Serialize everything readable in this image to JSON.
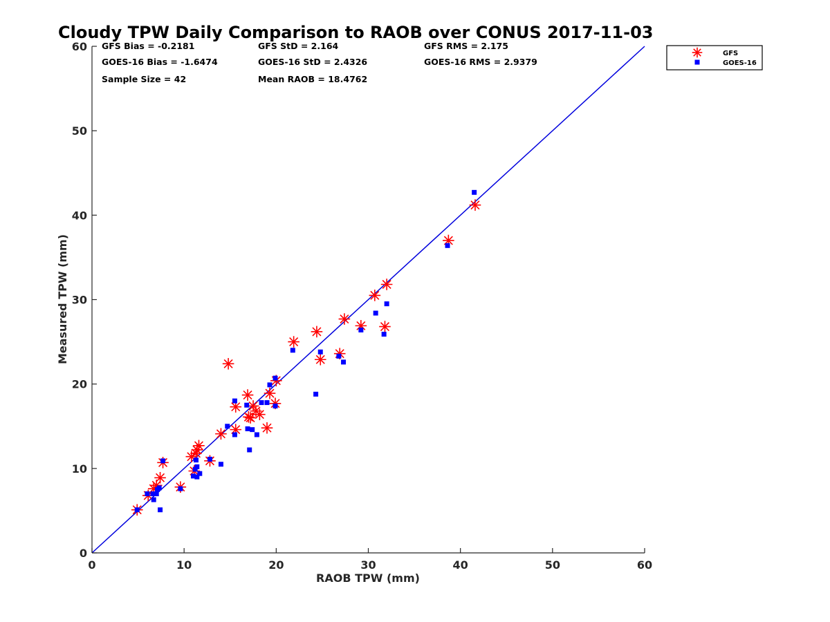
{
  "chart_data": {
    "type": "scatter",
    "title": "Cloudy TPW Daily Comparison to RAOB over CONUS 2017-11-03",
    "xlabel": "RAOB TPW (mm)",
    "ylabel": "Measured TPW (mm)",
    "xlim": [
      0,
      60
    ],
    "ylim": [
      0,
      60
    ],
    "xticks": [
      "0",
      "10",
      "20",
      "30",
      "40",
      "50",
      "60"
    ],
    "yticks": [
      "0",
      "10",
      "20",
      "30",
      "40",
      "50",
      "60"
    ],
    "grid": false,
    "legend_position": "top-right, outside plot",
    "reference_line": {
      "from": [
        0,
        0
      ],
      "to": [
        60,
        60
      ],
      "color": "#0000dd"
    },
    "stats": [
      [
        "GFS Bias = -0.2181",
        "GFS StD = 2.164",
        "GFS RMS = 2.175"
      ],
      [
        "GOES-16 Bias = -1.6474",
        "GOES-16 StD = 2.4326",
        "GOES-16 RMS = 2.9379"
      ],
      [
        "Sample Size = 42",
        "Mean RAOB = 18.4762",
        ""
      ]
    ],
    "series": [
      {
        "name": "GFS",
        "marker": "asterisk",
        "color": "#ff0000",
        "points": [
          [
            4.9,
            5.1
          ],
          [
            6.1,
            6.8
          ],
          [
            6.7,
            7.6
          ],
          [
            7.0,
            8.0
          ],
          [
            7.4,
            8.9
          ],
          [
            7.7,
            10.7
          ],
          [
            9.6,
            7.8
          ],
          [
            10.8,
            11.4
          ],
          [
            11.1,
            9.7
          ],
          [
            11.3,
            11.8
          ],
          [
            11.4,
            12.2
          ],
          [
            11.6,
            12.7
          ],
          [
            12.8,
            10.9
          ],
          [
            14.0,
            14.1
          ],
          [
            14.8,
            22.4
          ],
          [
            15.6,
            17.3
          ],
          [
            15.6,
            14.6
          ],
          [
            16.9,
            18.7
          ],
          [
            17.0,
            16.1
          ],
          [
            17.2,
            16.0
          ],
          [
            17.5,
            17.4
          ],
          [
            17.8,
            16.8
          ],
          [
            18.2,
            16.4
          ],
          [
            19.0,
            14.8
          ],
          [
            19.3,
            18.9
          ],
          [
            19.9,
            17.7
          ],
          [
            20.0,
            20.4
          ],
          [
            21.9,
            25.0
          ],
          [
            24.4,
            26.2
          ],
          [
            24.8,
            22.9
          ],
          [
            26.9,
            23.6
          ],
          [
            27.4,
            27.7
          ],
          [
            29.2,
            26.9
          ],
          [
            30.7,
            30.5
          ],
          [
            31.8,
            26.8
          ],
          [
            32.0,
            31.8
          ],
          [
            38.7,
            37.0
          ],
          [
            41.6,
            41.2
          ]
        ]
      },
      {
        "name": "GOES-16",
        "marker": "square",
        "color": "#0000ff",
        "points": [
          [
            4.9,
            5.1
          ],
          [
            6.0,
            7.0
          ],
          [
            6.6,
            7.0
          ],
          [
            6.7,
            6.3
          ],
          [
            7.0,
            7.0
          ],
          [
            7.1,
            7.5
          ],
          [
            7.3,
            7.7
          ],
          [
            7.4,
            5.1
          ],
          [
            7.7,
            10.9
          ],
          [
            9.6,
            7.6
          ],
          [
            11.0,
            9.1
          ],
          [
            11.2,
            9.9
          ],
          [
            11.3,
            11.0
          ],
          [
            11.4,
            10.2
          ],
          [
            11.4,
            9.0
          ],
          [
            11.7,
            9.4
          ],
          [
            12.8,
            11.1
          ],
          [
            14.0,
            10.5
          ],
          [
            14.7,
            15.0
          ],
          [
            15.5,
            18.0
          ],
          [
            15.5,
            14.0
          ],
          [
            16.8,
            17.5
          ],
          [
            16.9,
            14.7
          ],
          [
            17.1,
            12.2
          ],
          [
            17.4,
            14.6
          ],
          [
            17.9,
            14.0
          ],
          [
            18.4,
            17.8
          ],
          [
            19.0,
            17.8
          ],
          [
            19.3,
            19.9
          ],
          [
            19.9,
            17.4
          ],
          [
            19.9,
            20.7
          ],
          [
            21.8,
            24.0
          ],
          [
            24.3,
            18.8
          ],
          [
            24.8,
            23.8
          ],
          [
            26.8,
            23.3
          ],
          [
            27.3,
            22.6
          ],
          [
            29.2,
            26.4
          ],
          [
            30.8,
            28.4
          ],
          [
            31.7,
            25.9
          ],
          [
            32.0,
            29.5
          ],
          [
            38.6,
            36.4
          ],
          [
            41.5,
            42.7
          ]
        ]
      }
    ]
  }
}
